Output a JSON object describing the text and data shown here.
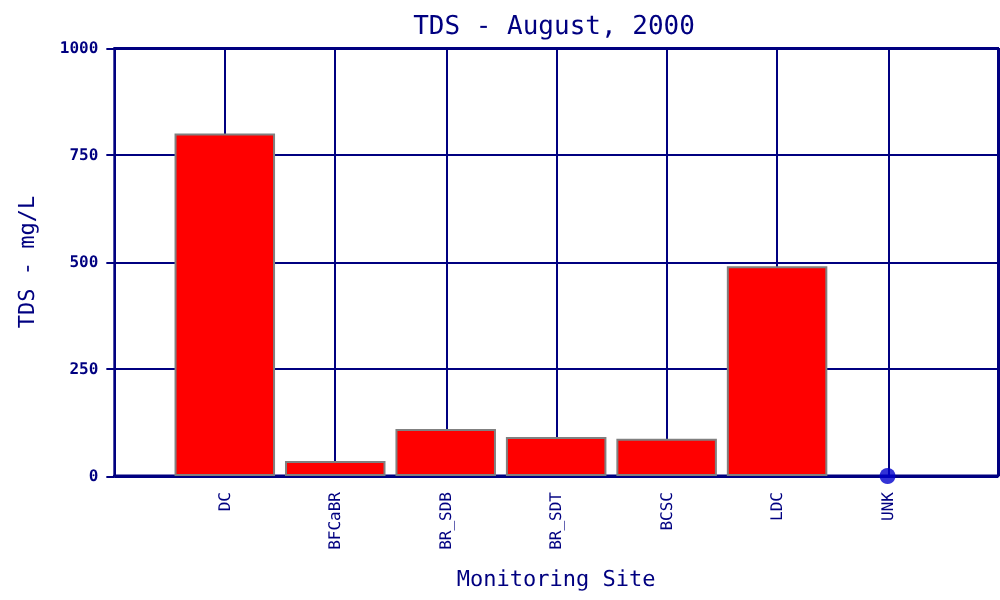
{
  "chart_data": {
    "type": "bar",
    "title": "TDS - August, 2000",
    "xlabel": "Monitoring Site",
    "ylabel": "TDS - mg/L",
    "categories": [
      null,
      "DC",
      "BFCaBR",
      "BR_SDB",
      "BR_SDT",
      "BCSC",
      "LDC",
      "UNK",
      null
    ],
    "series": [
      {
        "color": "#ff0000",
        "values": [
          null,
          800,
          35,
          110,
          91,
          87,
          490,
          null,
          null
        ]
      },
      {
        "type": "scatter",
        "color": "#0000cc",
        "x": [
          "UNK"
        ],
        "values": [
          0
        ],
        "marker": "circle"
      }
    ],
    "ylim": [
      0,
      1000
    ],
    "yticks": [
      0,
      250,
      500,
      750,
      1000
    ],
    "grid": true
  }
}
